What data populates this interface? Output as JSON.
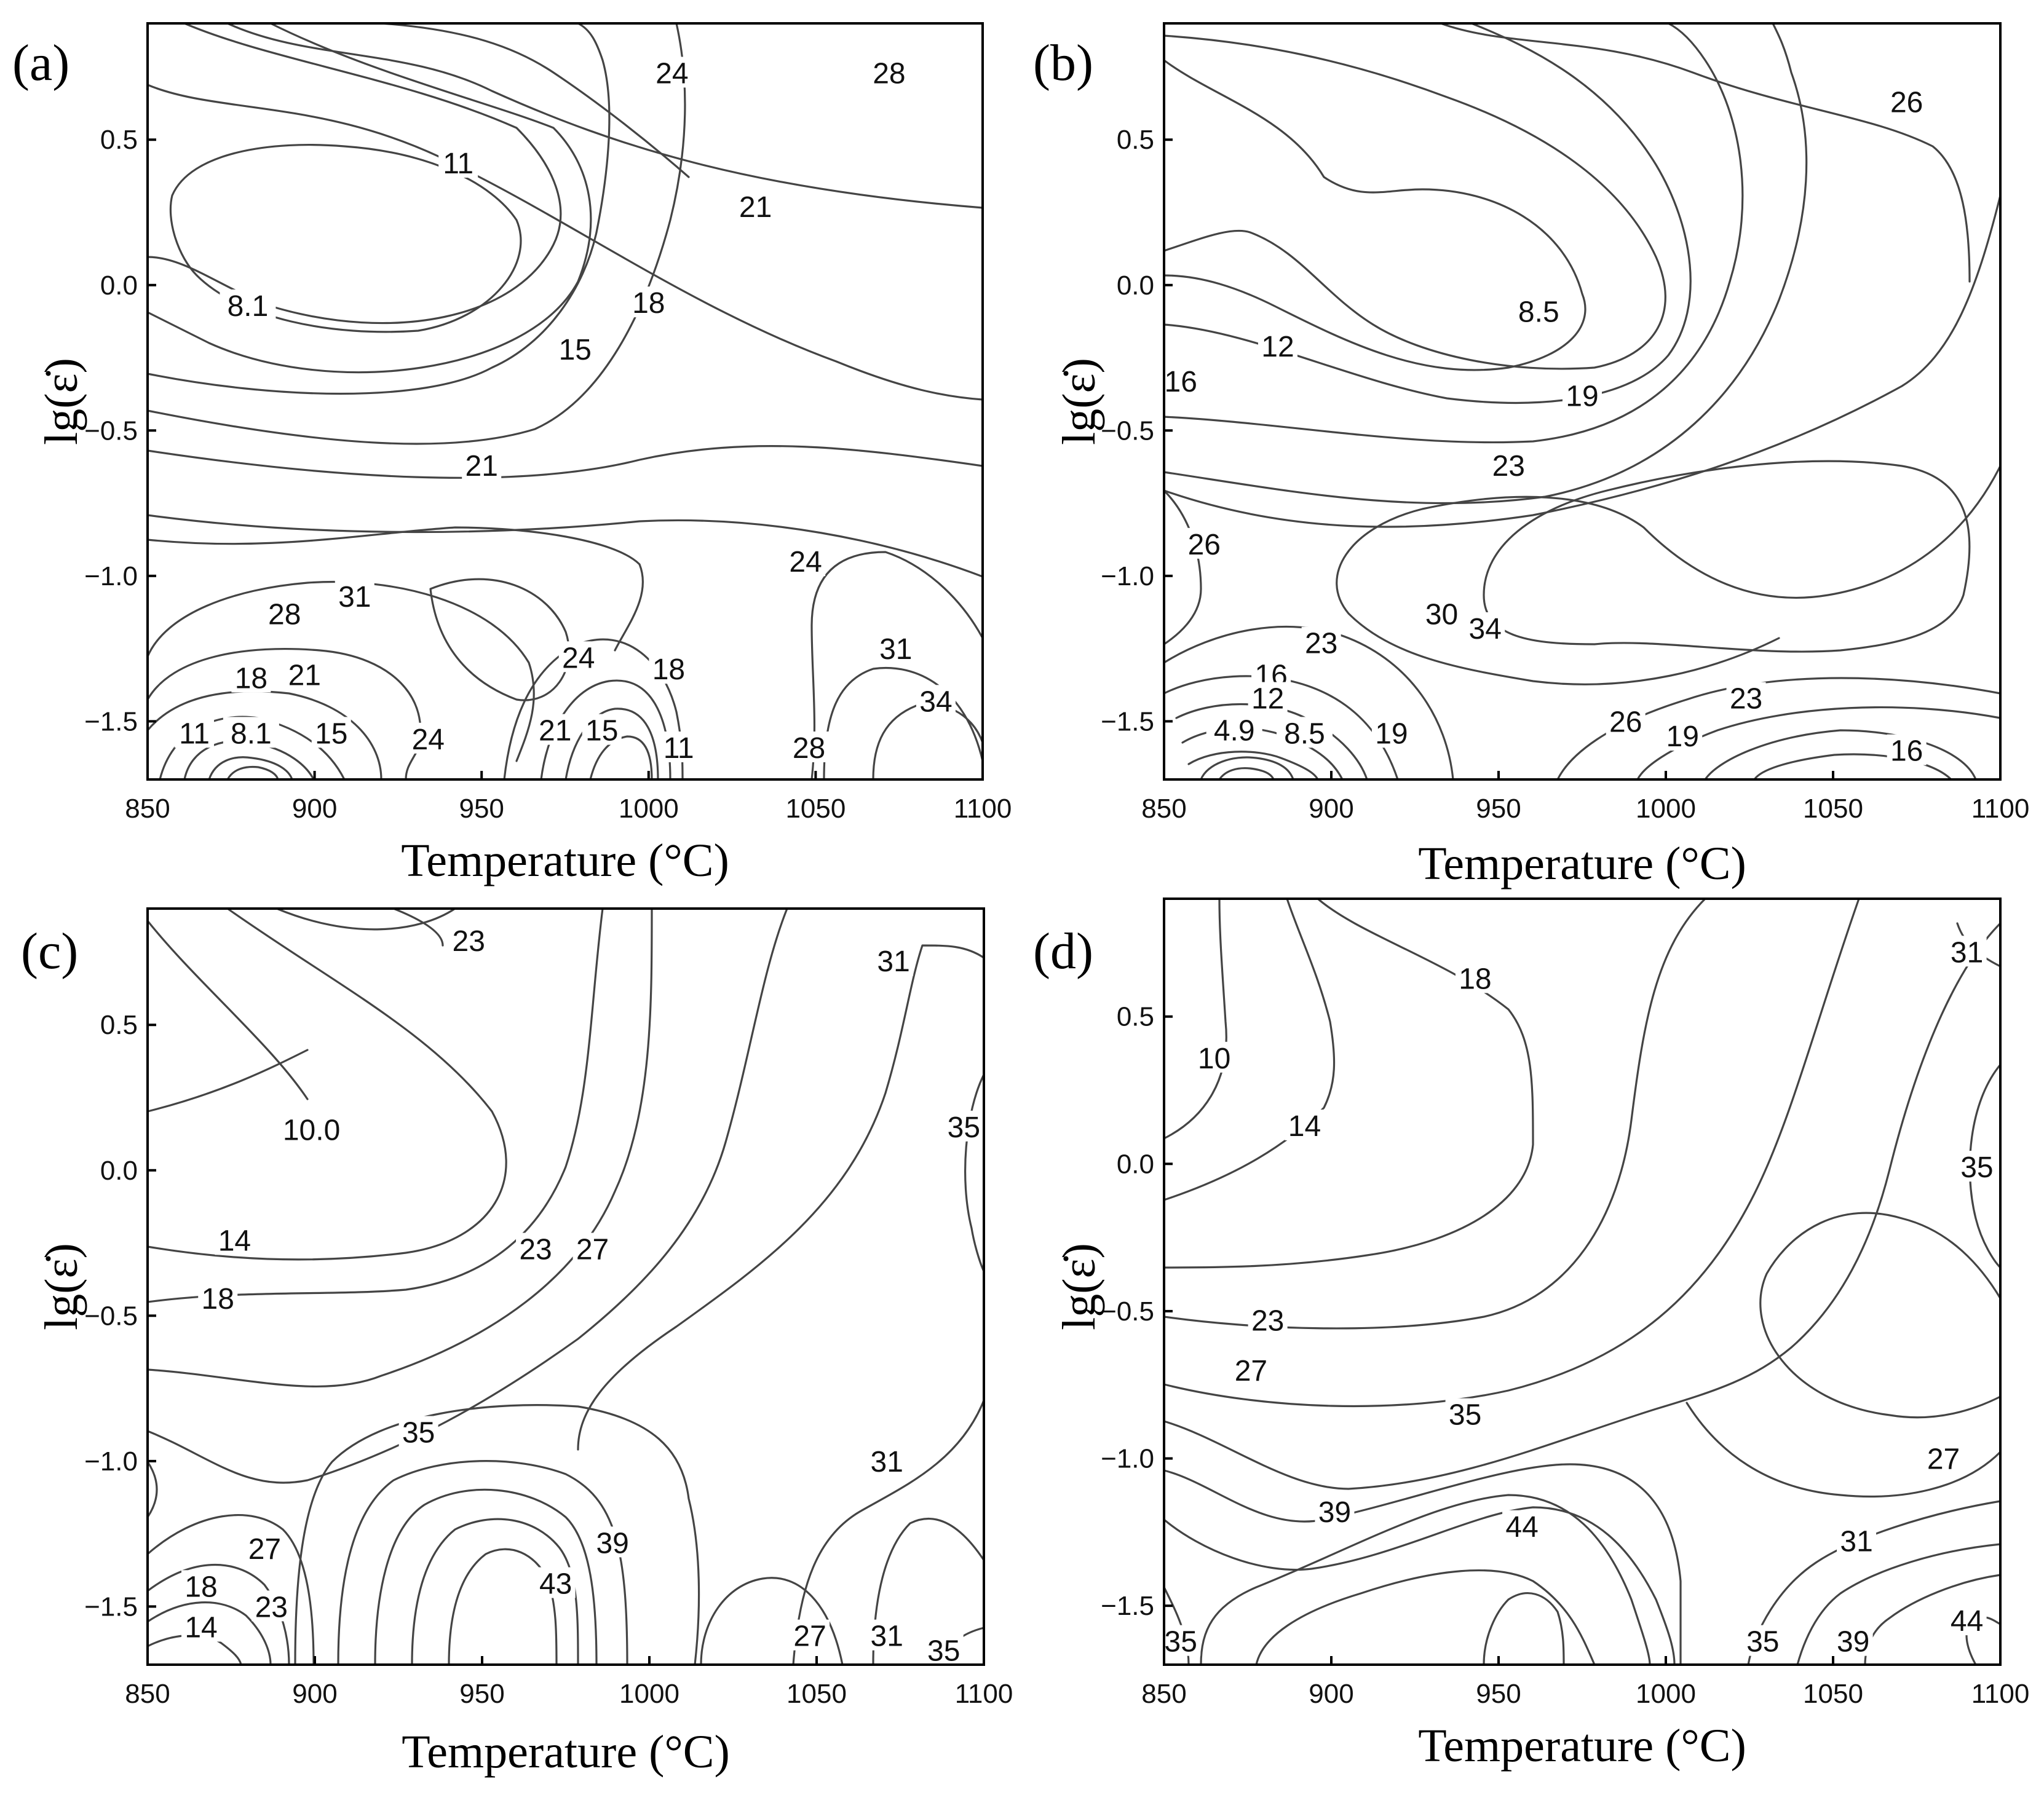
{
  "chart_data": [
    {
      "panel": "(a)",
      "type": "contour",
      "xlabel": "Temperature (°C)",
      "ylabel": "lg(ε̇)",
      "xlim": [
        850,
        1100
      ],
      "ylim": [
        -1.7,
        0.9
      ],
      "xticks": [
        "850",
        "900",
        "950",
        "1000",
        "1050",
        "1100"
      ],
      "yticks": [
        "0.5",
        "0.0",
        "−0.5",
        "−1.0",
        "−1.5"
      ],
      "levels": [
        {
          "label": "28",
          "x": 1072,
          "y": 0.73
        },
        {
          "label": "24",
          "x": 1007,
          "y": 0.73
        },
        {
          "label": "11",
          "x": 943,
          "y": 0.42
        },
        {
          "label": "21",
          "x": 1032,
          "y": 0.27
        },
        {
          "label": "8.1",
          "x": 880,
          "y": -0.07
        },
        {
          "label": "18",
          "x": 1000,
          "y": -0.06
        },
        {
          "label": "15",
          "x": 978,
          "y": -0.22
        },
        {
          "label": "21",
          "x": 950,
          "y": -0.62
        },
        {
          "label": "24",
          "x": 1047,
          "y": -0.95
        },
        {
          "label": "31",
          "x": 912,
          "y": -1.07
        },
        {
          "label": "28",
          "x": 891,
          "y": -1.13
        },
        {
          "label": "31",
          "x": 1074,
          "y": -1.25
        },
        {
          "label": "24",
          "x": 979,
          "y": -1.28
        },
        {
          "label": "18",
          "x": 881,
          "y": -1.35
        },
        {
          "label": "21",
          "x": 897,
          "y": -1.34
        },
        {
          "label": "18",
          "x": 1006,
          "y": -1.32
        },
        {
          "label": "34",
          "x": 1086,
          "y": -1.43
        },
        {
          "label": "11",
          "x": 864,
          "y": -1.54
        },
        {
          "label": "8.1",
          "x": 881,
          "y": -1.54
        },
        {
          "label": "15",
          "x": 905,
          "y": -1.54
        },
        {
          "label": "24",
          "x": 934,
          "y": -1.56
        },
        {
          "label": "21",
          "x": 972,
          "y": -1.53
        },
        {
          "label": "15",
          "x": 986,
          "y": -1.53
        },
        {
          "label": "11",
          "x": 1009,
          "y": -1.59
        },
        {
          "label": "28",
          "x": 1048,
          "y": -1.59
        }
      ]
    },
    {
      "panel": "(b)",
      "type": "contour",
      "xlabel": "Temperature (°C)",
      "ylabel": "lg(ε̇)",
      "xlim": [
        850,
        1100
      ],
      "ylim": [
        -1.7,
        0.9
      ],
      "xticks": [
        "850",
        "900",
        "950",
        "1000",
        "1050",
        "1100"
      ],
      "yticks": [
        "0.5",
        "0.0",
        "−0.5",
        "−1.0",
        "−1.5"
      ],
      "levels": [
        {
          "label": "26",
          "x": 1072,
          "y": 0.63
        },
        {
          "label": "8.5",
          "x": 962,
          "y": -0.09
        },
        {
          "label": "12",
          "x": 884,
          "y": -0.21
        },
        {
          "label": "16",
          "x": 855,
          "y": -0.33
        },
        {
          "label": "19",
          "x": 975,
          "y": -0.38
        },
        {
          "label": "23",
          "x": 953,
          "y": -0.62
        },
        {
          "label": "26",
          "x": 862,
          "y": -0.89
        },
        {
          "label": "30",
          "x": 933,
          "y": -1.13
        },
        {
          "label": "34",
          "x": 946,
          "y": -1.18
        },
        {
          "label": "23",
          "x": 897,
          "y": -1.23
        },
        {
          "label": "16",
          "x": 882,
          "y": -1.34
        },
        {
          "label": "12",
          "x": 881,
          "y": -1.42
        },
        {
          "label": "23",
          "x": 1024,
          "y": -1.42
        },
        {
          "label": "26",
          "x": 988,
          "y": -1.5
        },
        {
          "label": "4.9",
          "x": 871,
          "y": -1.53
        },
        {
          "label": "8.5",
          "x": 892,
          "y": -1.54
        },
        {
          "label": "19",
          "x": 918,
          "y": -1.54
        },
        {
          "label": "19",
          "x": 1005,
          "y": -1.55
        },
        {
          "label": "16",
          "x": 1072,
          "y": -1.6
        }
      ]
    },
    {
      "panel": "(c)",
      "type": "contour",
      "xlabel": "Temperature (°C)",
      "ylabel": "lg(ε̇)",
      "xlim": [
        850,
        1100
      ],
      "ylim": [
        -1.7,
        0.9
      ],
      "xticks": [
        "850",
        "900",
        "950",
        "1000",
        "1050",
        "1100"
      ],
      "yticks": [
        "0.5",
        "0.0",
        "−0.5",
        "−1.0",
        "−1.5"
      ],
      "levels": [
        {
          "label": "23",
          "x": 946,
          "y": 0.79
        },
        {
          "label": "31",
          "x": 1073,
          "y": 0.72
        },
        {
          "label": "10.0",
          "x": 899,
          "y": 0.14
        },
        {
          "label": "35",
          "x": 1094,
          "y": 0.15
        },
        {
          "label": "14",
          "x": 876,
          "y": -0.24
        },
        {
          "label": "23",
          "x": 966,
          "y": -0.27
        },
        {
          "label": "27",
          "x": 983,
          "y": -0.27
        },
        {
          "label": "18",
          "x": 871,
          "y": -0.44
        },
        {
          "label": "35",
          "x": 931,
          "y": -0.9
        },
        {
          "label": "31",
          "x": 1071,
          "y": -1.0
        },
        {
          "label": "27",
          "x": 885,
          "y": -1.3
        },
        {
          "label": "39",
          "x": 989,
          "y": -1.28
        },
        {
          "label": "43",
          "x": 972,
          "y": -1.42
        },
        {
          "label": "18",
          "x": 866,
          "y": -1.43
        },
        {
          "label": "23",
          "x": 887,
          "y": -1.5
        },
        {
          "label": "14",
          "x": 866,
          "y": -1.57
        },
        {
          "label": "27",
          "x": 1048,
          "y": -1.6
        },
        {
          "label": "31",
          "x": 1071,
          "y": -1.6
        },
        {
          "label": "35",
          "x": 1088,
          "y": -1.65
        }
      ]
    },
    {
      "panel": "(d)",
      "type": "contour",
      "xlabel": "Temperature (°C)",
      "ylabel": "lg(ε̇)",
      "xlim": [
        850,
        1100
      ],
      "ylim": [
        -1.7,
        0.9
      ],
      "xticks": [
        "850",
        "900",
        "950",
        "1000",
        "1050",
        "1100"
      ],
      "yticks": [
        "0.5",
        "0.0",
        "−0.5",
        "−1.0",
        "−1.5"
      ],
      "levels": [
        {
          "label": "31",
          "x": 1090,
          "y": 0.72
        },
        {
          "label": "18",
          "x": 943,
          "y": 0.63
        },
        {
          "label": "10",
          "x": 865,
          "y": 0.36
        },
        {
          "label": "14",
          "x": 892,
          "y": 0.13
        },
        {
          "label": "35",
          "x": 1093,
          "y": -0.01
        },
        {
          "label": "23",
          "x": 881,
          "y": -0.53
        },
        {
          "label": "27",
          "x": 876,
          "y": -0.7
        },
        {
          "label": "35",
          "x": 940,
          "y": -0.85
        },
        {
          "label": "27",
          "x": 1083,
          "y": -1.0
        },
        {
          "label": "39",
          "x": 901,
          "y": -1.18
        },
        {
          "label": "44",
          "x": 957,
          "y": -1.23
        },
        {
          "label": "31",
          "x": 1057,
          "y": -1.28
        },
        {
          "label": "35",
          "x": 855,
          "y": -1.62
        },
        {
          "label": "35",
          "x": 1029,
          "y": -1.62
        },
        {
          "label": "39",
          "x": 1056,
          "y": -1.62
        },
        {
          "label": "44",
          "x": 1090,
          "y": -1.55
        }
      ]
    }
  ]
}
